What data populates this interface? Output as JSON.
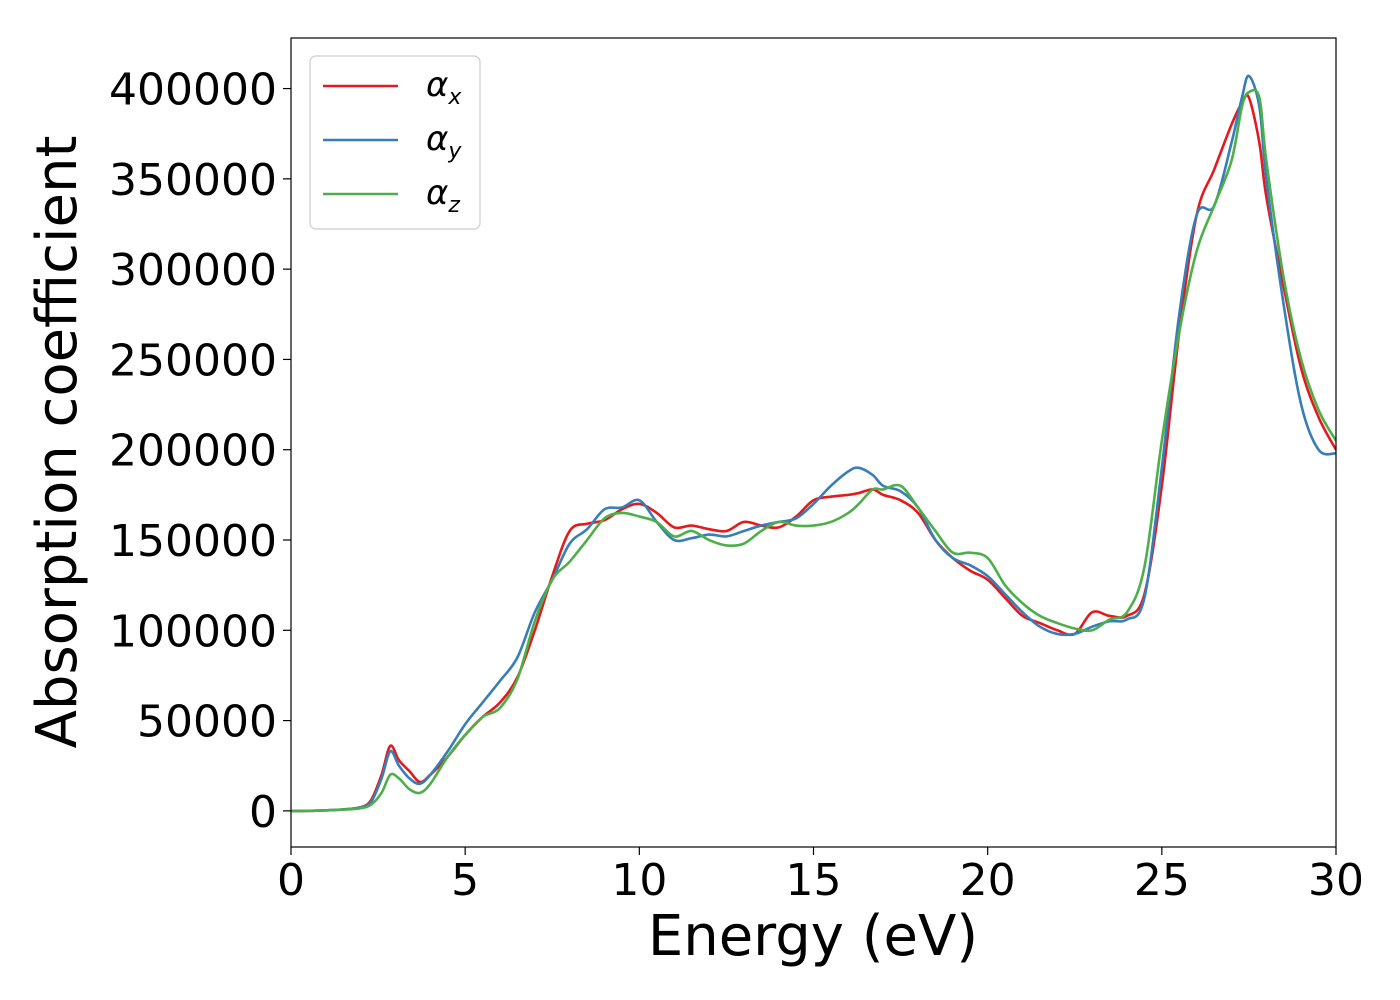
{
  "chart_data": {
    "type": "line",
    "title": "",
    "xlabel": "Energy (eV)",
    "ylabel": "Absorption coefficient",
    "xlim": [
      0,
      30
    ],
    "ylim": [
      -20000,
      428000
    ],
    "xticks": [
      0,
      5,
      10,
      15,
      20,
      25,
      30
    ],
    "yticks": [
      0,
      50000,
      100000,
      150000,
      200000,
      250000,
      300000,
      350000,
      400000
    ],
    "xtick_labels": [
      "0",
      "5",
      "10",
      "15",
      "20",
      "25",
      "30"
    ],
    "ytick_labels": [
      "0",
      "50000",
      "100000",
      "150000",
      "200000",
      "250000",
      "300000",
      "350000",
      "400000"
    ],
    "grid": false,
    "legend_position": "top-left",
    "x": [
      0,
      0.5,
      1.0,
      1.5,
      2.0,
      2.3,
      2.6,
      2.85,
      3.1,
      3.4,
      3.7,
      4.0,
      4.5,
      5.0,
      5.5,
      6.0,
      6.5,
      7.0,
      7.5,
      8.0,
      8.5,
      9.0,
      9.5,
      10.0,
      10.5,
      11.0,
      11.5,
      12.0,
      12.5,
      13.0,
      13.5,
      14.0,
      14.5,
      15.0,
      15.5,
      16.0,
      16.3,
      16.7,
      17.0,
      17.5,
      18.0,
      18.5,
      19.0,
      19.5,
      20.0,
      20.5,
      21.0,
      21.5,
      22.0,
      22.5,
      23.0,
      23.5,
      24.0,
      24.5,
      25.0,
      25.5,
      26.0,
      26.5,
      27.0,
      27.3,
      27.5,
      27.8,
      28.0,
      28.5,
      29.0,
      29.5,
      30.0
    ],
    "series": [
      {
        "name": "αx",
        "color": "#e41a1c",
        "values": [
          0,
          0,
          300,
          800,
          2000,
          6000,
          20000,
          36000,
          28000,
          22000,
          16000,
          20000,
          30000,
          42000,
          52000,
          60000,
          74000,
          100000,
          130000,
          155000,
          159000,
          161000,
          167000,
          170000,
          165000,
          157000,
          158000,
          156000,
          155000,
          160000,
          158000,
          157000,
          163000,
          172000,
          174000,
          175000,
          176000,
          178000,
          175000,
          172000,
          165000,
          150000,
          140000,
          133000,
          128000,
          118000,
          108000,
          104000,
          100000,
          98000,
          110000,
          108000,
          108000,
          120000,
          180000,
          265000,
          330000,
          355000,
          380000,
          392000,
          395000,
          370000,
          340000,
          290000,
          245000,
          218000,
          200000
        ]
      },
      {
        "name": "αy",
        "color": "#377eb8",
        "values": [
          0,
          0,
          300,
          800,
          2000,
          5000,
          18000,
          33000,
          25000,
          18000,
          15000,
          20000,
          33000,
          48000,
          60000,
          72000,
          85000,
          110000,
          128000,
          148000,
          156000,
          167000,
          168000,
          172000,
          160000,
          150000,
          151000,
          153000,
          152000,
          155000,
          158000,
          160000,
          162000,
          170000,
          180000,
          188000,
          190000,
          186000,
          180000,
          177000,
          168000,
          150000,
          140000,
          136000,
          130000,
          120000,
          110000,
          102000,
          98000,
          98000,
          102000,
          105000,
          106000,
          118000,
          190000,
          275000,
          330000,
          335000,
          370000,
          395000,
          407000,
          390000,
          350000,
          280000,
          225000,
          200000,
          198000
        ]
      },
      {
        "name": "αz",
        "color": "#4daf4a",
        "values": [
          0,
          0,
          300,
          700,
          1500,
          3500,
          10000,
          20000,
          18000,
          12000,
          10000,
          15000,
          30000,
          42000,
          52000,
          57000,
          73000,
          105000,
          128000,
          138000,
          150000,
          162000,
          165000,
          163000,
          160000,
          152000,
          155000,
          150000,
          147000,
          148000,
          155000,
          160000,
          158000,
          158000,
          160000,
          165000,
          170000,
          178000,
          178000,
          180000,
          168000,
          155000,
          143000,
          143000,
          140000,
          125000,
          115000,
          108000,
          104000,
          101000,
          100000,
          106000,
          110000,
          135000,
          205000,
          265000,
          310000,
          335000,
          360000,
          390000,
          398000,
          395000,
          360000,
          295000,
          250000,
          222000,
          205000
        ]
      }
    ]
  }
}
